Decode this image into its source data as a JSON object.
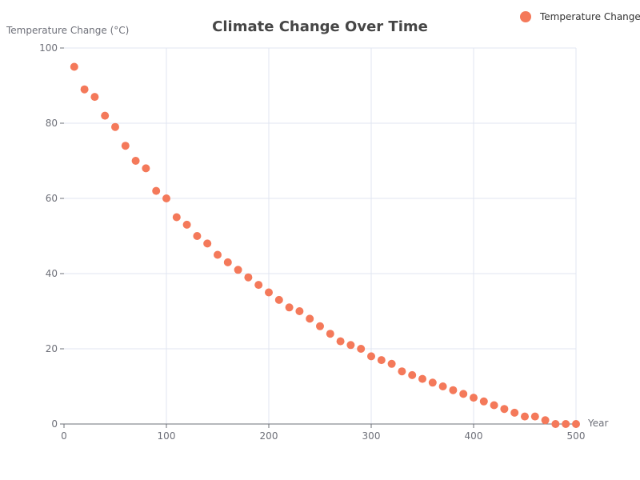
{
  "chart_data": {
    "type": "scatter",
    "title": "Climate Change Over Time",
    "xlabel": "Year",
    "ylabel": "Temperature Change (°C)",
    "xlim": [
      0,
      500
    ],
    "ylim": [
      0,
      100
    ],
    "x_ticks": [
      0,
      100,
      200,
      300,
      400,
      500
    ],
    "y_ticks": [
      0,
      20,
      40,
      60,
      80,
      100
    ],
    "grid": true,
    "legend_position": "top-right",
    "series": [
      {
        "name": "Temperature Change",
        "color": "#f4795a",
        "x": [
          10,
          20,
          30,
          40,
          50,
          60,
          70,
          80,
          90,
          100,
          110,
          120,
          130,
          140,
          150,
          160,
          170,
          180,
          190,
          200,
          210,
          220,
          230,
          240,
          250,
          260,
          270,
          280,
          290,
          300,
          310,
          320,
          330,
          340,
          350,
          360,
          370,
          380,
          390,
          400,
          410,
          420,
          430,
          440,
          450,
          460,
          470,
          480,
          490,
          500
        ],
        "y": [
          95,
          89,
          87,
          82,
          79,
          74,
          70,
          68,
          62,
          60,
          55,
          53,
          50,
          48,
          45,
          43,
          41,
          39,
          37,
          35,
          33,
          31,
          30,
          28,
          26,
          24,
          22,
          21,
          20,
          18,
          17,
          16,
          14,
          13,
          12,
          11,
          10,
          9,
          8,
          7,
          6,
          5,
          4,
          3,
          2,
          2,
          1,
          0,
          0,
          0
        ]
      }
    ]
  }
}
